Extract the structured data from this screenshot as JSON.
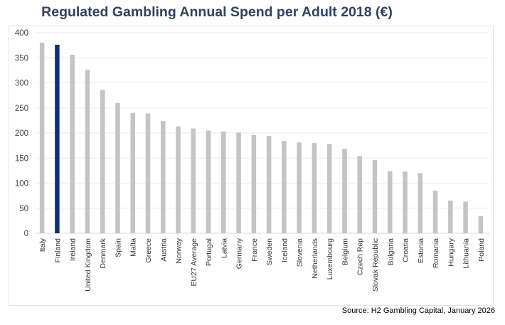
{
  "chart_data": {
    "type": "bar",
    "title": "Regulated Gambling Annual Spend per Adult 2018 (€)",
    "xlabel": "",
    "ylabel": "",
    "ylim": [
      0,
      400
    ],
    "yticks": [
      0,
      50,
      100,
      150,
      200,
      250,
      300,
      350,
      400
    ],
    "grid": true,
    "categories": [
      "Italy",
      "Finland",
      "Ireland",
      "United Kingdom",
      "Denmark",
      "Spain",
      "Malta",
      "Greece",
      "Austria",
      "Norway",
      "EU27 Average",
      "Portugal",
      "Latvia",
      "Germany",
      "France",
      "Sweden",
      "Iceland",
      "Slovenia",
      "Netherlands",
      "Luxembourg",
      "Belgium",
      "Czech Rep",
      "Slovak Republic",
      "Bulgaria",
      "Croatia",
      "Estonia",
      "Romania",
      "Hungary",
      "Lithuania",
      "Poland"
    ],
    "values": [
      380,
      376,
      356,
      326,
      286,
      260,
      240,
      239,
      224,
      213,
      209,
      205,
      203,
      201,
      196,
      194,
      184,
      181,
      180,
      178,
      168,
      154,
      146,
      124,
      123,
      120,
      85,
      65,
      63,
      34
    ],
    "highlight": "Finland",
    "colors": {
      "default": "#c4c4c4",
      "highlight": "#0e3270",
      "grid": "#ebebeb",
      "title": "#2f4262"
    }
  },
  "source": "Source: H2 Gambling Capital, January 2026"
}
